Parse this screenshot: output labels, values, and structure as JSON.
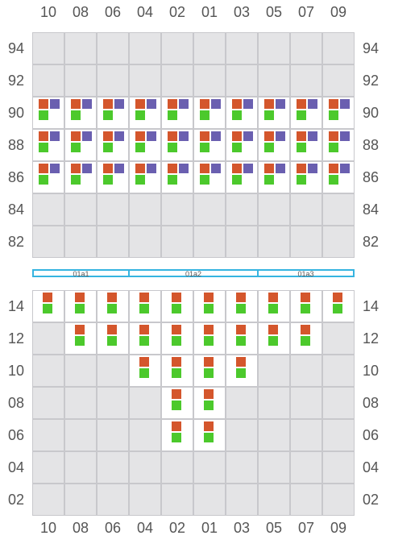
{
  "colors": {
    "reefer_top": "#d4562c",
    "reefer_side": "#6a5fb0",
    "below": "#4cc92c",
    "empty": "#e4e4e6",
    "bay_border": "#36b4e0"
  },
  "rows": [
    "10",
    "08",
    "06",
    "04",
    "02",
    "01",
    "03",
    "05",
    "07",
    "09"
  ],
  "deck": {
    "tiers": [
      "94",
      "92",
      "90",
      "88",
      "86",
      "84",
      "82"
    ],
    "occupied": {
      "90": [
        "10",
        "08",
        "06",
        "04",
        "02",
        "01",
        "03",
        "05",
        "07",
        "09"
      ],
      "88": [
        "10",
        "08",
        "06",
        "04",
        "02",
        "01",
        "03",
        "05",
        "07",
        "09"
      ],
      "86": [
        "10",
        "08",
        "06",
        "04",
        "02",
        "01",
        "03",
        "05",
        "07",
        "09"
      ]
    }
  },
  "hatch_covers": [
    {
      "label": "01a1"
    },
    {
      "label": "01a2"
    },
    {
      "label": "01a3"
    }
  ],
  "hold": {
    "tiers": [
      "14",
      "12",
      "10",
      "08",
      "06",
      "04",
      "02"
    ],
    "occupied": {
      "14": [
        "10",
        "08",
        "06",
        "04",
        "02",
        "01",
        "03",
        "05",
        "07",
        "09"
      ],
      "12": [
        "08",
        "06",
        "04",
        "02",
        "01",
        "03",
        "05",
        "07"
      ],
      "10": [
        "04",
        "02",
        "01",
        "03"
      ],
      "08": [
        "02",
        "01"
      ],
      "06": [
        "02",
        "01"
      ]
    }
  }
}
